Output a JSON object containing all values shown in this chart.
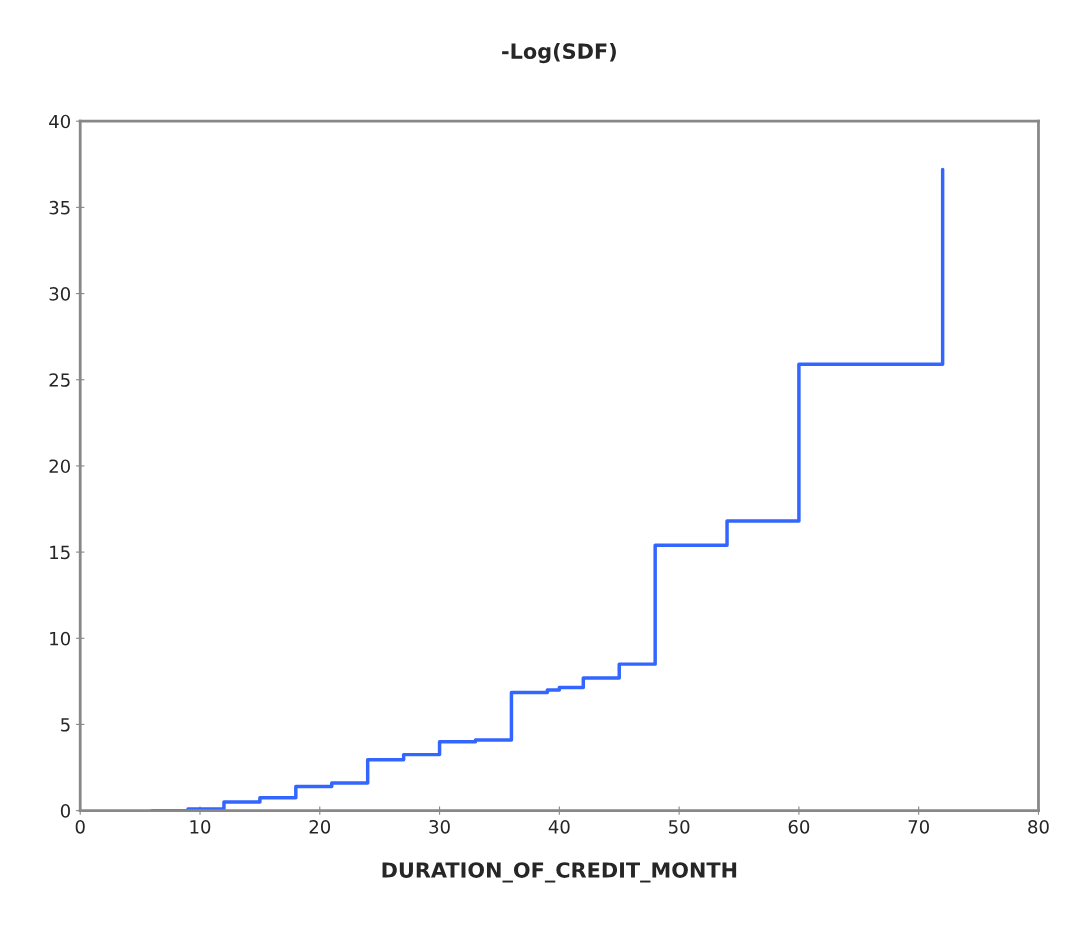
{
  "chart_data": {
    "type": "step",
    "title": "-Log(SDF)",
    "xlabel": "DURATION_OF_CREDIT_MONTH",
    "x": [
      6,
      9,
      12,
      15,
      18,
      21,
      24,
      27,
      30,
      33,
      36,
      39,
      40,
      42,
      45,
      48,
      54,
      60,
      72
    ],
    "series": [
      {
        "color": "#3366ff",
        "values": [
          0,
          0.1,
          0.5,
          0.75,
          1.4,
          1.6,
          2.95,
          3.25,
          4.0,
          4.1,
          6.85,
          7.0,
          7.15,
          7.7,
          8.5,
          15.4,
          16.8,
          25.9,
          37.2
        ]
      }
    ],
    "xlim": [
      0,
      80
    ],
    "xticks": [
      0,
      10,
      20,
      30,
      40,
      50,
      60,
      70,
      80
    ],
    "ylim": [
      0,
      40
    ],
    "yticks": [
      0,
      5,
      10,
      15,
      20,
      25,
      30,
      35,
      40
    ],
    "grid": false,
    "legend": false
  }
}
